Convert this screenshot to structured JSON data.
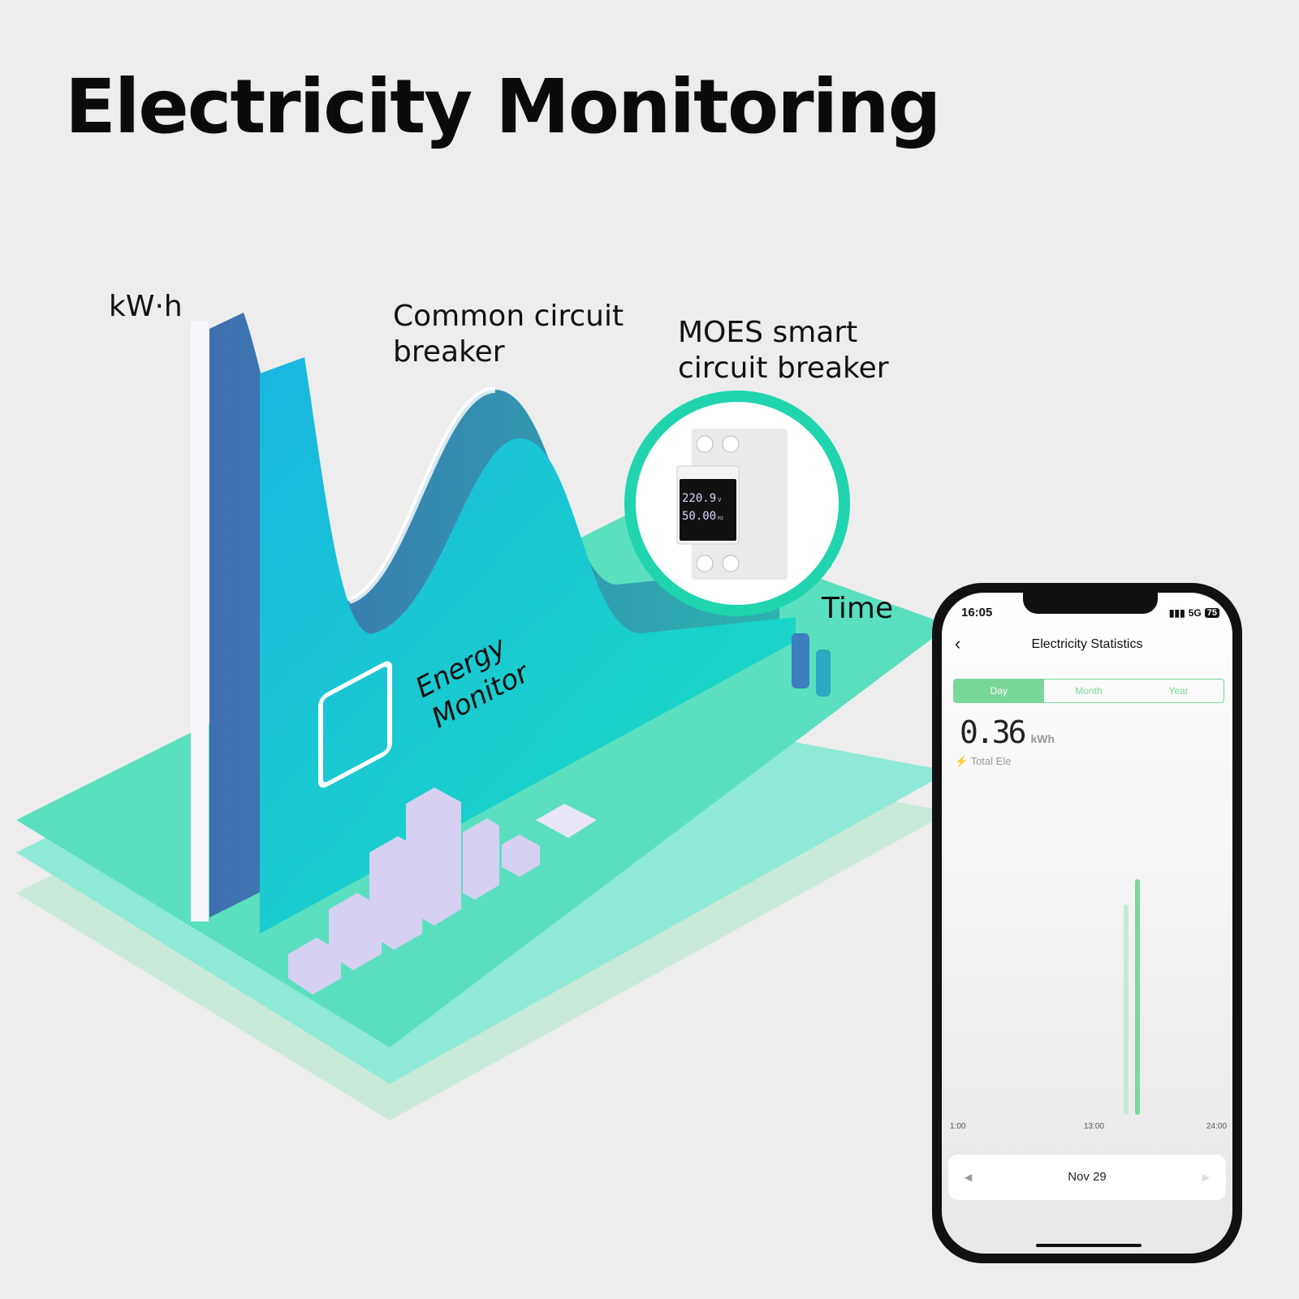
{
  "title": "Electricity Monitoring",
  "labels": {
    "y_axis": "kW·h",
    "x_axis": "Time",
    "common": [
      "Common circuit",
      "breaker"
    ],
    "moes": [
      "MOES smart",
      "circuit breaker"
    ],
    "energy_monitor": [
      "Energy",
      "Monitor"
    ]
  },
  "device_display": {
    "voltage": "220.9",
    "voltage_unit": "V",
    "frequency": "50.00",
    "frequency_unit": "Hz"
  },
  "colors": {
    "accent_green": "#7ad79a",
    "teal": "#1fd9b8",
    "ring": "#20d4ae"
  },
  "phone": {
    "status": {
      "time": "16:05",
      "network": "5G",
      "battery": "75"
    },
    "header": {
      "title": "Electricity Statistics",
      "back_icon": "chevron-left"
    },
    "tabs": [
      {
        "label": "Day",
        "active": true
      },
      {
        "label": "Month",
        "active": false
      },
      {
        "label": "Year",
        "active": false
      }
    ],
    "total": {
      "value": "0.36",
      "unit": "kWh",
      "label": "Total Ele"
    },
    "date": "Nov 29"
  },
  "chart_data": {
    "type": "bar",
    "x_ticks": [
      "1:00",
      "13:00",
      "24:00"
    ],
    "x": [
      16,
      17
    ],
    "values": [
      0.17,
      0.19
    ],
    "colors": [
      "#c3ead2",
      "#7ad79a"
    ]
  }
}
